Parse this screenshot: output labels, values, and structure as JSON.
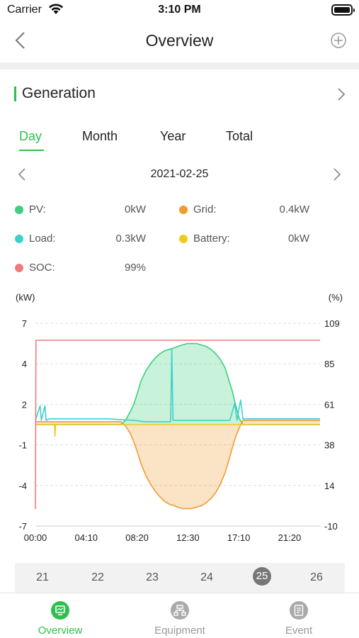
{
  "status": {
    "carrier": "Carrier",
    "time": "3:10 PM"
  },
  "nav": {
    "title": "Overview",
    "back_icon": "chevron-left-icon",
    "add_icon": "plus-circle-icon"
  },
  "section": {
    "title": "Generation",
    "chevron_icon": "chevron-right-icon",
    "accent": "#2fbf4f"
  },
  "tabs": [
    {
      "label": "Day",
      "active": true
    },
    {
      "label": "Month",
      "active": false
    },
    {
      "label": "Year",
      "active": false
    },
    {
      "label": "Total",
      "active": false
    }
  ],
  "date": {
    "value": "2021-02-25"
  },
  "legend": [
    {
      "label": "PV:",
      "value": "0kW",
      "color": "#3ccf7f"
    },
    {
      "label": "Grid:",
      "value": "0.4kW",
      "color": "#f29b2e"
    },
    {
      "label": "Load:",
      "value": "0.3kW",
      "color": "#3fcfcf"
    },
    {
      "label": "Battery:",
      "value": "0kW",
      "color": "#f2c91e"
    },
    {
      "label": "SOC:",
      "value": "99%",
      "color": "#ef7b7b"
    }
  ],
  "chart_data": {
    "type": "area",
    "ylabel_left": "(kW)",
    "ylabel_right": "(%)",
    "x_ticks": [
      "00:00",
      "04:10",
      "08:20",
      "12:30",
      "17:10",
      "21:20"
    ],
    "y_left_ticks": [
      7,
      4,
      2,
      -1,
      -4,
      -7
    ],
    "y_right_ticks": [
      109,
      85,
      61,
      38,
      14,
      -10
    ],
    "y_left_range": [
      -7,
      7
    ],
    "y_right_range": [
      -10,
      109
    ],
    "x_range_hours": [
      0,
      24
    ],
    "grid": true,
    "series": [
      {
        "name": "PV",
        "color": "#3ccf7f",
        "fill": true,
        "points": [
          [
            0,
            0
          ],
          [
            7.2,
            0
          ],
          [
            7.6,
            0.3
          ],
          [
            8,
            0.9
          ],
          [
            8.3,
            1.4
          ],
          [
            8.6,
            2.2
          ],
          [
            8.9,
            3.0
          ],
          [
            9.3,
            3.7
          ],
          [
            9.7,
            4.2
          ],
          [
            10.1,
            4.6
          ],
          [
            10.5,
            4.9
          ],
          [
            10.9,
            5.1
          ],
          [
            11.3,
            5.2
          ],
          [
            11.7,
            5.3
          ],
          [
            12.0,
            5.4
          ],
          [
            12.4,
            5.5
          ],
          [
            12.8,
            5.6
          ],
          [
            13.2,
            5.6
          ],
          [
            13.6,
            5.6
          ],
          [
            14.0,
            5.5
          ],
          [
            14.4,
            5.4
          ],
          [
            14.8,
            5.2
          ],
          [
            15.2,
            4.9
          ],
          [
            15.6,
            4.5
          ],
          [
            16.0,
            3.9
          ],
          [
            16.3,
            3.1
          ],
          [
            16.6,
            2.3
          ],
          [
            16.9,
            1.3
          ],
          [
            17.2,
            0.4
          ],
          [
            17.5,
            0
          ],
          [
            24,
            0
          ]
        ]
      },
      {
        "name": "Grid",
        "color": "#f29b2e",
        "fill": true,
        "points": [
          [
            0,
            0.2
          ],
          [
            7.2,
            0.2
          ],
          [
            7.6,
            -0.1
          ],
          [
            8,
            -0.6
          ],
          [
            8.3,
            -1.2
          ],
          [
            8.6,
            -1.9
          ],
          [
            8.9,
            -2.7
          ],
          [
            9.3,
            -3.5
          ],
          [
            9.7,
            -4.1
          ],
          [
            10.1,
            -4.6
          ],
          [
            10.5,
            -5.0
          ],
          [
            10.9,
            -5.3
          ],
          [
            11.3,
            -5.5
          ],
          [
            11.7,
            -5.6
          ],
          [
            12.0,
            -5.7
          ],
          [
            12.4,
            -5.8
          ],
          [
            12.8,
            -5.8
          ],
          [
            13.2,
            -5.8
          ],
          [
            13.6,
            -5.7
          ],
          [
            14.0,
            -5.6
          ],
          [
            14.4,
            -5.4
          ],
          [
            14.8,
            -5.1
          ],
          [
            15.2,
            -4.7
          ],
          [
            15.6,
            -4.1
          ],
          [
            16.0,
            -3.3
          ],
          [
            16.3,
            -2.5
          ],
          [
            16.6,
            -1.6
          ],
          [
            16.9,
            -0.8
          ],
          [
            17.2,
            -0.2
          ],
          [
            17.5,
            0.3
          ],
          [
            24,
            0.3
          ]
        ]
      },
      {
        "name": "Load",
        "color": "#3fcfcf",
        "fill": false,
        "points": [
          [
            0,
            0.3
          ],
          [
            0.4,
            1.3
          ],
          [
            0.5,
            0.3
          ],
          [
            0.8,
            1.3
          ],
          [
            0.9,
            0.3
          ],
          [
            1.2,
            0.4
          ],
          [
            6,
            0.4
          ],
          [
            8.3,
            0.3
          ],
          [
            9.2,
            0.2
          ],
          [
            11.4,
            0.2
          ],
          [
            11.5,
            5.2
          ],
          [
            11.6,
            0.3
          ],
          [
            16.4,
            0.3
          ],
          [
            16.8,
            1.5
          ],
          [
            17.0,
            0.3
          ],
          [
            17.3,
            1.7
          ],
          [
            17.5,
            0.4
          ],
          [
            24,
            0.4
          ]
        ]
      },
      {
        "name": "Battery",
        "color": "#f2c91e",
        "fill": false,
        "points": [
          [
            0,
            0
          ],
          [
            1.6,
            0
          ],
          [
            1.65,
            -0.8
          ],
          [
            1.7,
            0
          ],
          [
            24,
            0
          ]
        ]
      },
      {
        "name": "SOC",
        "color": "#ef7b7b",
        "fill": false,
        "axis": "right",
        "points": [
          [
            0,
            0
          ],
          [
            0.05,
            99
          ],
          [
            24,
            99
          ]
        ]
      }
    ]
  },
  "days": [
    {
      "label": "21",
      "active": false
    },
    {
      "label": "22",
      "active": false
    },
    {
      "label": "23",
      "active": false
    },
    {
      "label": "24",
      "active": false
    },
    {
      "label": "25",
      "active": true
    },
    {
      "label": "26",
      "active": false
    }
  ],
  "tabbar": [
    {
      "label": "Overview",
      "icon": "overview-icon",
      "active": true
    },
    {
      "label": "Equipment",
      "icon": "equipment-icon",
      "active": false
    },
    {
      "label": "Event",
      "icon": "event-icon",
      "active": false
    }
  ]
}
